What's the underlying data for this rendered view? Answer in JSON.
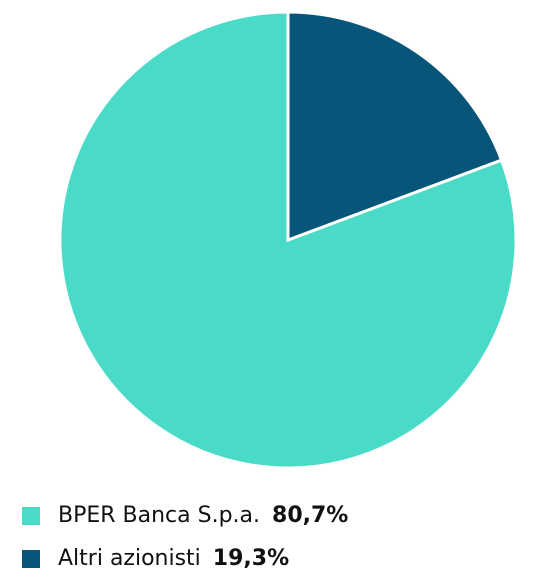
{
  "chart_data": {
    "type": "pie",
    "categories": [
      "BPER Banca S.p.a.",
      "Altri azionisti"
    ],
    "values": [
      80.7,
      19.3
    ],
    "value_labels": [
      "80,7%",
      "19,3%"
    ],
    "colors": [
      "#4adbc8",
      "#08557a"
    ]
  }
}
